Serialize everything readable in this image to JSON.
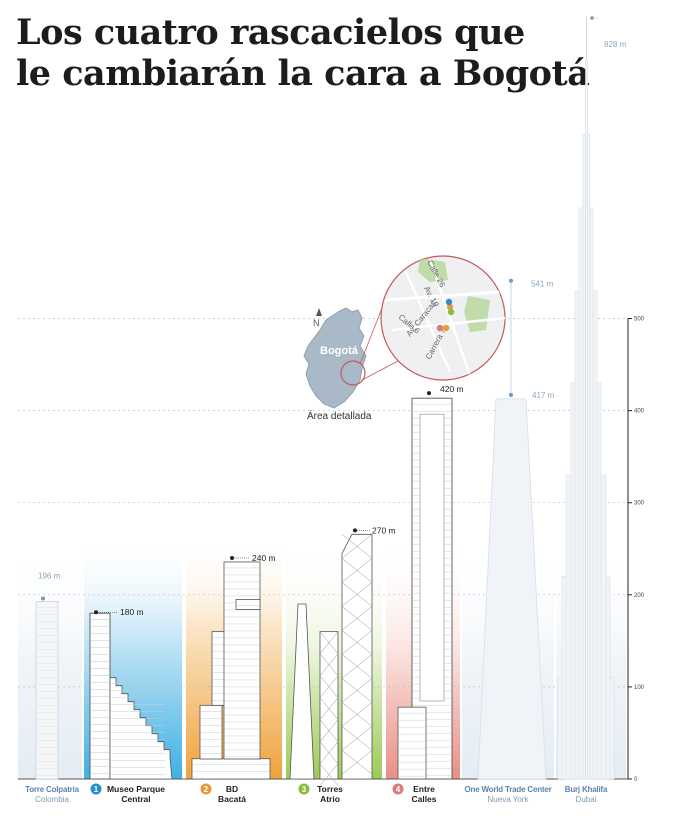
{
  "page": {
    "title_line1": "Los cuatro rascacielos que",
    "title_line2": "le cambiarán la cara a Bogotá"
  },
  "chart_data": {
    "type": "bar",
    "title": "Los cuatro rascacielos que le cambiarán la cara a Bogotá",
    "unit": "m",
    "ylim": [
      0,
      500
    ],
    "yticks": [
      "0",
      "100",
      "200",
      "300",
      "400",
      "500"
    ],
    "grid": true,
    "buildings": [
      {
        "name": "Torre Colpatria",
        "sub": "Colombia",
        "height": 196,
        "label": "196 m",
        "num": "",
        "color": "#5b8fbf",
        "bg": "#e6eef5"
      },
      {
        "name": "Museo Parque Central",
        "name_l1": "Museo Parque",
        "name_l2": "Central",
        "height": 180,
        "label": "180 m",
        "num": "1",
        "color": "#2a8fc8",
        "bg": "#5bbde8"
      },
      {
        "name": "BD Bacatá",
        "name_l1": "BD",
        "name_l2": "Bacatá",
        "height": 240,
        "label": "240 m",
        "num": "2",
        "color": "#e89a35",
        "bg": "#f3b562"
      },
      {
        "name": "Torres Atrio",
        "name_l1": "Torres",
        "name_l2": "Atrio",
        "height": 270,
        "label": "270 m",
        "num": "3",
        "color": "#8cbc3d",
        "bg": "#a9d26a"
      },
      {
        "name": "Entre Calles",
        "name_l1": "Entre",
        "name_l2": "Calles",
        "height": 420,
        "label": "420 m",
        "num": "4",
        "color": "#d87c7c",
        "bg": "#ec9a90"
      },
      {
        "name": "One World Trade Center",
        "sub": "Nueva York",
        "height": 417,
        "label": "417 m",
        "spire_label": "541 m",
        "spire": 541,
        "num": "",
        "color": "#5b8fbf",
        "bg": "#eef3f8"
      },
      {
        "name": "Burj Khalifa",
        "sub": "Dubai",
        "height": 828,
        "label": "828 m",
        "num": "",
        "color": "#5b8fbf",
        "bg": "#eef3f8"
      }
    ],
    "map": {
      "city": "Bogotá",
      "north": "N",
      "area_label": "Área detallada",
      "streets": [
        "Calle 26",
        "Av. 19",
        "Calle 6",
        "Av. Caracas",
        "Carrera 7"
      ]
    }
  }
}
